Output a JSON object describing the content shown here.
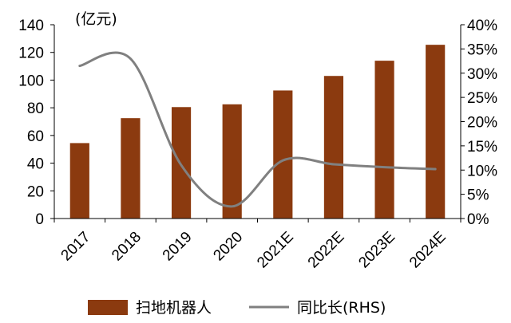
{
  "chart_data": {
    "type": "bar",
    "categories": [
      "2017",
      "2018",
      "2019",
      "2020",
      "2021E",
      "2022E",
      "2023E",
      "2024E"
    ],
    "series": [
      {
        "name": "扫地机器人",
        "type": "bar",
        "axis": "left",
        "values": [
          54.5,
          72.5,
          80.5,
          82.5,
          92.5,
          103,
          114,
          125.5
        ]
      },
      {
        "name": "同比长(RHS)",
        "type": "line",
        "axis": "right",
        "values": [
          31.5,
          33,
          11,
          2.5,
          12,
          11.2,
          10.6,
          10.2
        ]
      }
    ],
    "ylim": [
      0,
      140
    ],
    "y2lim": [
      0,
      40
    ],
    "y_ticks": [
      0,
      20,
      40,
      60,
      80,
      100,
      120,
      140
    ],
    "y2_ticks": [
      "0%",
      "5%",
      "10%",
      "15%",
      "20%",
      "25%",
      "30%",
      "35%",
      "40%"
    ],
    "unit_label": "(亿元)",
    "legend": {
      "placement": "bottom",
      "bar_label": "扫地机器人",
      "line_label": "同比长(RHS)"
    },
    "colors": {
      "bar": "#8B3A0F",
      "line": "#808080",
      "axis": "#000000"
    },
    "grid": false
  }
}
